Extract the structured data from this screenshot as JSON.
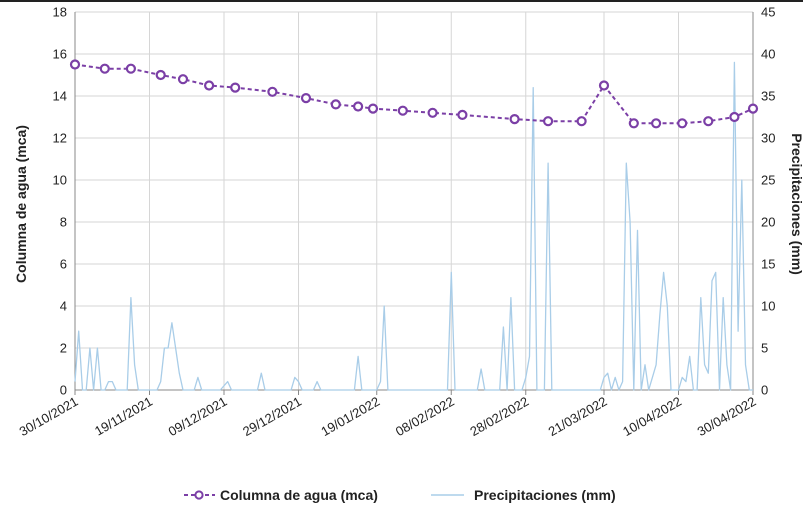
{
  "chart_data": {
    "type": "line",
    "title": "",
    "ylabel_left": "Columna de agua (mca)",
    "ylabel_right": "Precipitaciones (mm)",
    "ylim_left": [
      0,
      18
    ],
    "ylim_right": [
      0,
      45
    ],
    "yticks_left": [
      "0",
      "2",
      "4",
      "6",
      "8",
      "10",
      "12",
      "14",
      "16",
      "18"
    ],
    "yticks_right": [
      "0",
      "5",
      "10",
      "15",
      "20",
      "25",
      "30",
      "35",
      "40",
      "45"
    ],
    "xlim": [
      "2021-10-30",
      "2022-04-30"
    ],
    "xticks": [
      "30/10/2021",
      "19/11/2021",
      "09/12/2021",
      "29/12/2021",
      "19/01/2022",
      "08/02/2022",
      "28/02/2022",
      "21/03/2022",
      "10/04/2022",
      "30/04/2022"
    ],
    "grid": true,
    "legend_position": "bottom",
    "colors": {
      "water": "#7b3fa6",
      "rain": "#a9cde8",
      "grid": "#d6d6d6"
    },
    "series": [
      {
        "name": "Columna de agua (mca)",
        "axis": "left",
        "style": "dashed-line-circle-markers",
        "points": [
          [
            "2021-10-30",
            15.5
          ],
          [
            "2021-11-07",
            15.3
          ],
          [
            "2021-11-14",
            15.3
          ],
          [
            "2021-11-22",
            15.0
          ],
          [
            "2021-11-28",
            14.8
          ],
          [
            "2021-12-05",
            14.5
          ],
          [
            "2021-12-12",
            14.4
          ],
          [
            "2021-12-22",
            14.2
          ],
          [
            "2021-12-31",
            13.9
          ],
          [
            "2022-01-08",
            13.6
          ],
          [
            "2022-01-14",
            13.5
          ],
          [
            "2022-01-18",
            13.4
          ],
          [
            "2022-01-26",
            13.3
          ],
          [
            "2022-02-03",
            13.2
          ],
          [
            "2022-02-11",
            13.1
          ],
          [
            "2022-02-25",
            12.9
          ],
          [
            "2022-03-06",
            12.8
          ],
          [
            "2022-03-15",
            12.8
          ],
          [
            "2022-03-21",
            14.5
          ],
          [
            "2022-03-29",
            12.7
          ],
          [
            "2022-04-04",
            12.7
          ],
          [
            "2022-04-11",
            12.7
          ],
          [
            "2022-04-18",
            12.8
          ],
          [
            "2022-04-25",
            13.0
          ],
          [
            "2022-04-30",
            13.4
          ]
        ]
      },
      {
        "name": "Precipitaciones (mm)",
        "axis": "right",
        "style": "thin-line",
        "points": [
          [
            "2021-10-30",
            1
          ],
          [
            "2021-10-31",
            7
          ],
          [
            "2021-11-01",
            0
          ],
          [
            "2021-11-02",
            0
          ],
          [
            "2021-11-03",
            5
          ],
          [
            "2021-11-04",
            0
          ],
          [
            "2021-11-05",
            5
          ],
          [
            "2021-11-06",
            0
          ],
          [
            "2021-11-07",
            0
          ],
          [
            "2021-11-08",
            1
          ],
          [
            "2021-11-09",
            1
          ],
          [
            "2021-11-10",
            0
          ],
          [
            "2021-11-13",
            0
          ],
          [
            "2021-11-14",
            11
          ],
          [
            "2021-11-15",
            3
          ],
          [
            "2021-11-16",
            0
          ],
          [
            "2021-11-21",
            0
          ],
          [
            "2021-11-22",
            1
          ],
          [
            "2021-11-23",
            5
          ],
          [
            "2021-11-24",
            5
          ],
          [
            "2021-11-25",
            8
          ],
          [
            "2021-11-26",
            5
          ],
          [
            "2021-11-27",
            2
          ],
          [
            "2021-11-28",
            0
          ],
          [
            "2021-12-01",
            0
          ],
          [
            "2021-12-02",
            1.5
          ],
          [
            "2021-12-03",
            0
          ],
          [
            "2021-12-08",
            0
          ],
          [
            "2021-12-10",
            1
          ],
          [
            "2021-12-11",
            0
          ],
          [
            "2021-12-18",
            0
          ],
          [
            "2021-12-19",
            2
          ],
          [
            "2021-12-20",
            0
          ],
          [
            "2021-12-27",
            0
          ],
          [
            "2021-12-28",
            1.5
          ],
          [
            "2021-12-29",
            1
          ],
          [
            "2021-12-30",
            0
          ],
          [
            "2022-01-02",
            0
          ],
          [
            "2022-01-03",
            1
          ],
          [
            "2022-01-04",
            0
          ],
          [
            "2022-01-13",
            0
          ],
          [
            "2022-01-14",
            4
          ],
          [
            "2022-01-15",
            0
          ],
          [
            "2022-01-19",
            0
          ],
          [
            "2022-01-20",
            1
          ],
          [
            "2022-01-21",
            10
          ],
          [
            "2022-01-22",
            0
          ],
          [
            "2022-02-07",
            0
          ],
          [
            "2022-02-08",
            14
          ],
          [
            "2022-02-09",
            0
          ],
          [
            "2022-02-15",
            0
          ],
          [
            "2022-02-16",
            2.5
          ],
          [
            "2022-02-17",
            0
          ],
          [
            "2022-02-21",
            0
          ],
          [
            "2022-02-22",
            7.5
          ],
          [
            "2022-02-23",
            0
          ],
          [
            "2022-02-24",
            11
          ],
          [
            "2022-02-25",
            0
          ],
          [
            "2022-02-27",
            0
          ],
          [
            "2022-02-28",
            1.5
          ],
          [
            "2022-03-01",
            4
          ],
          [
            "2022-03-02",
            36
          ],
          [
            "2022-03-03",
            0
          ],
          [
            "2022-03-05",
            0
          ],
          [
            "2022-03-06",
            27
          ],
          [
            "2022-03-07",
            0
          ],
          [
            "2022-03-20",
            0
          ],
          [
            "2022-03-21",
            1.5
          ],
          [
            "2022-03-22",
            2
          ],
          [
            "2022-03-23",
            0
          ],
          [
            "2022-03-24",
            1.5
          ],
          [
            "2022-03-25",
            0
          ],
          [
            "2022-03-26",
            1
          ],
          [
            "2022-03-27",
            27
          ],
          [
            "2022-03-28",
            20
          ],
          [
            "2022-03-29",
            0
          ],
          [
            "2022-03-30",
            19
          ],
          [
            "2022-03-31",
            0
          ],
          [
            "2022-04-01",
            3
          ],
          [
            "2022-04-02",
            0
          ],
          [
            "2022-04-03",
            1.5
          ],
          [
            "2022-04-04",
            3
          ],
          [
            "2022-04-05",
            9
          ],
          [
            "2022-04-06",
            14
          ],
          [
            "2022-04-07",
            10
          ],
          [
            "2022-04-08",
            0
          ],
          [
            "2022-04-10",
            0
          ],
          [
            "2022-04-11",
            1.5
          ],
          [
            "2022-04-12",
            1
          ],
          [
            "2022-04-13",
            4
          ],
          [
            "2022-04-14",
            0
          ],
          [
            "2022-04-15",
            0
          ],
          [
            "2022-04-16",
            11
          ],
          [
            "2022-04-17",
            3
          ],
          [
            "2022-04-18",
            2
          ],
          [
            "2022-04-19",
            13
          ],
          [
            "2022-04-20",
            14
          ],
          [
            "2022-04-21",
            0
          ],
          [
            "2022-04-22",
            11
          ],
          [
            "2022-04-23",
            3
          ],
          [
            "2022-04-24",
            0
          ],
          [
            "2022-04-25",
            39
          ],
          [
            "2022-04-26",
            7
          ],
          [
            "2022-04-27",
            25
          ],
          [
            "2022-04-28",
            3
          ],
          [
            "2022-04-29",
            0
          ],
          [
            "2022-04-30",
            0
          ]
        ]
      }
    ]
  }
}
